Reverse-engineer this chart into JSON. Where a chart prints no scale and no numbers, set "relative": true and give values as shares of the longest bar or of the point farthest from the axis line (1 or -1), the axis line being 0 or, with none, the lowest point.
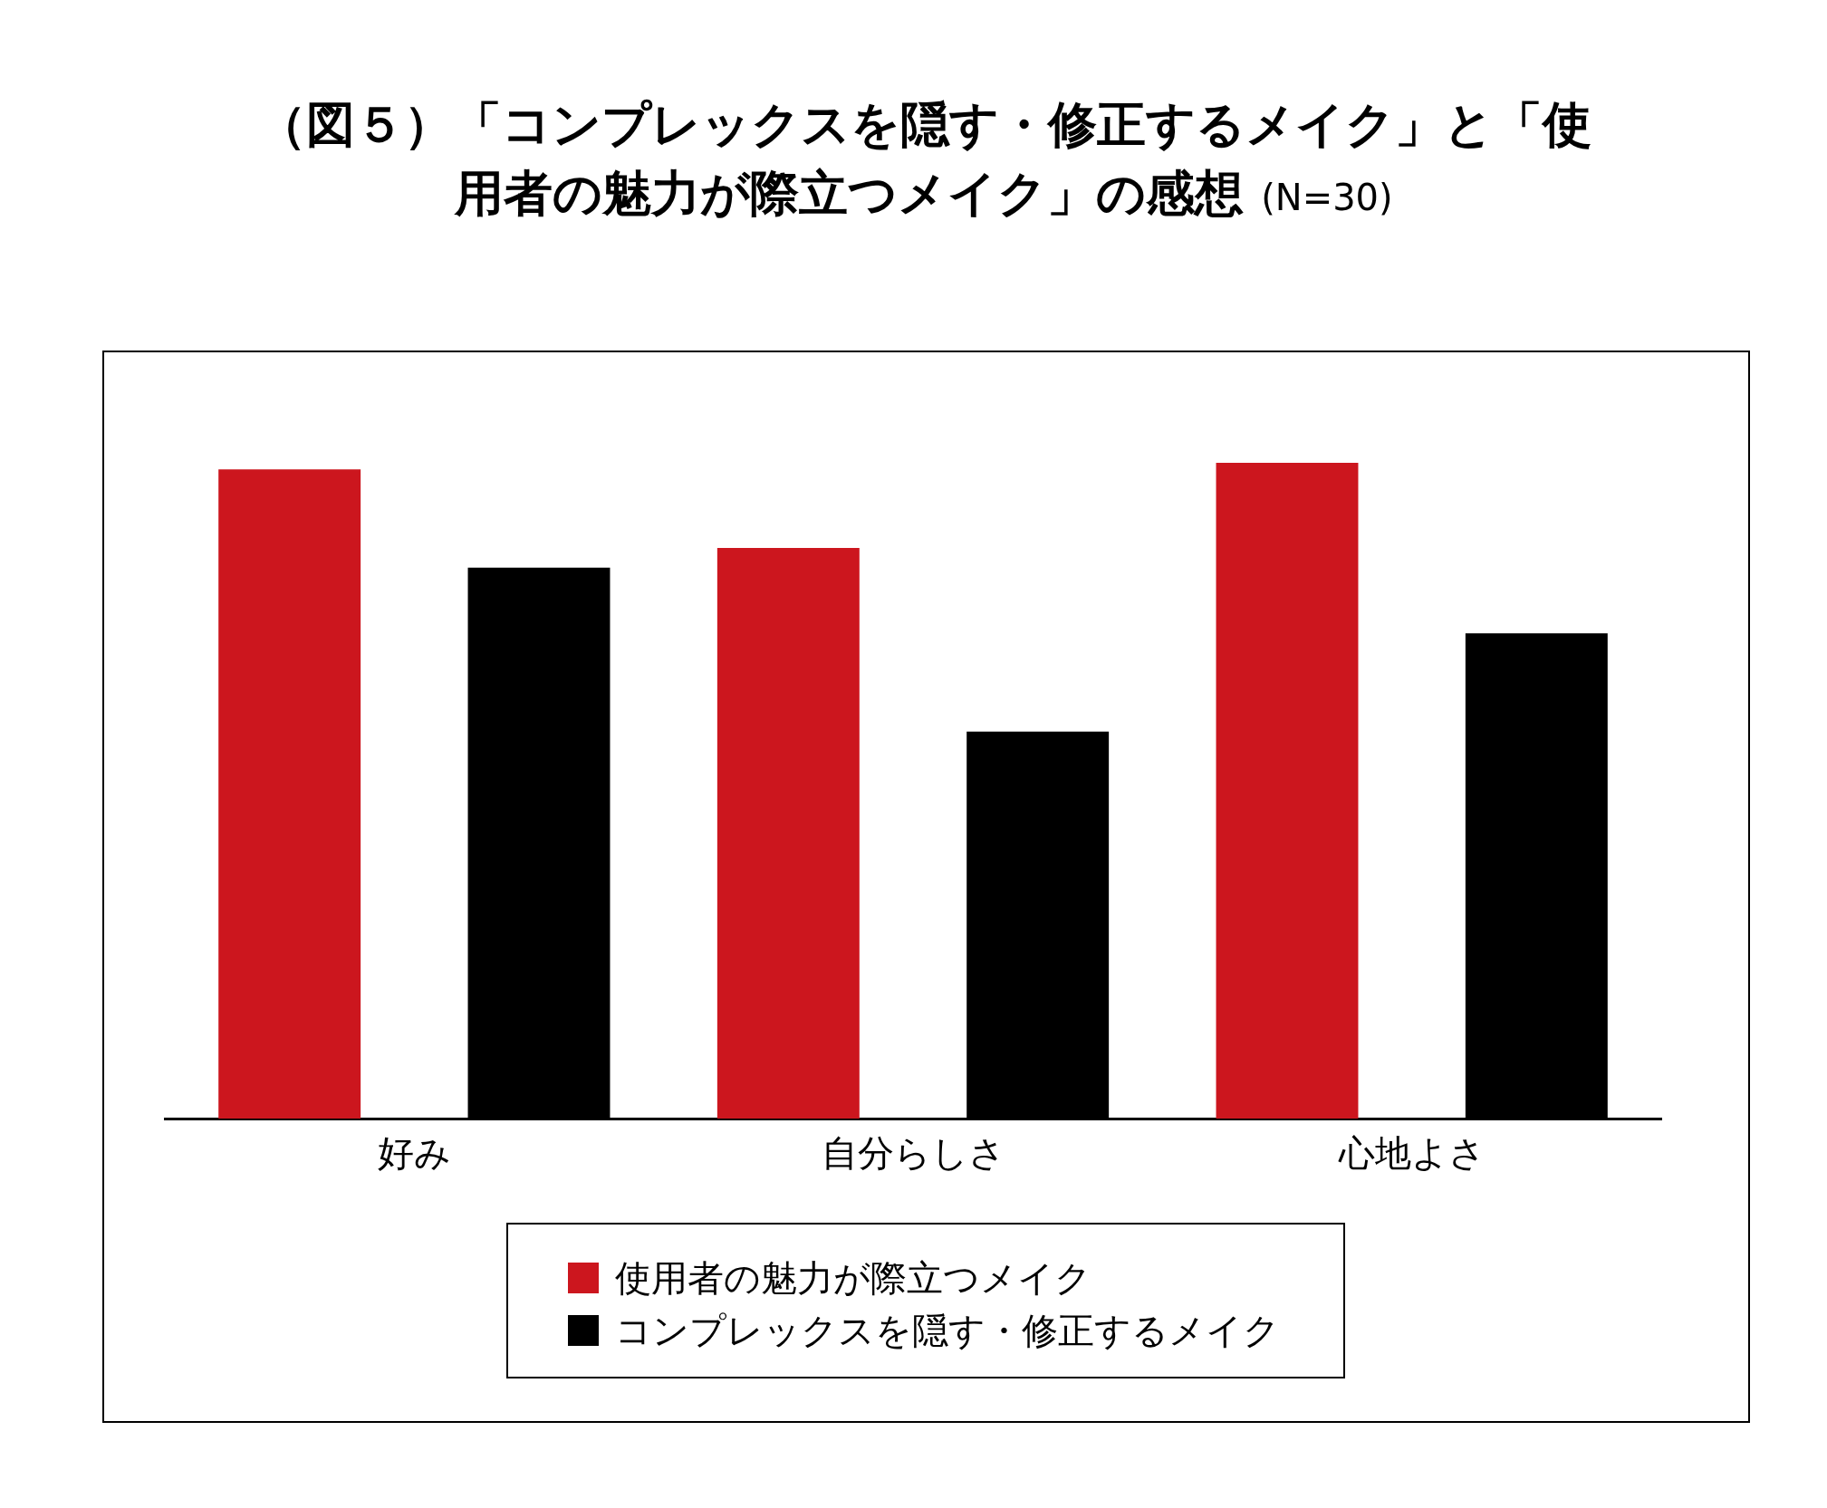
{
  "chart_data": {
    "type": "bar",
    "title": "（図５）「コンプレックスを隠す・修正するメイク」と「使用者の魅力が際立つメイク」の感想",
    "subtitle": "(N=30)",
    "categories": [
      "好み",
      "自分らしさ",
      "心地よさ"
    ],
    "relative": true,
    "grid": false,
    "legend": "bottom",
    "series": [
      {
        "name": "使用者の魅力が際立つメイク",
        "color": "#cc161e",
        "values": [
          0.99,
          0.87,
          1
        ]
      },
      {
        "name": "コンプレックスを隠す・修正するメイク",
        "color": "#000000",
        "values": [
          0.84,
          0.59,
          0.74
        ]
      }
    ]
  }
}
